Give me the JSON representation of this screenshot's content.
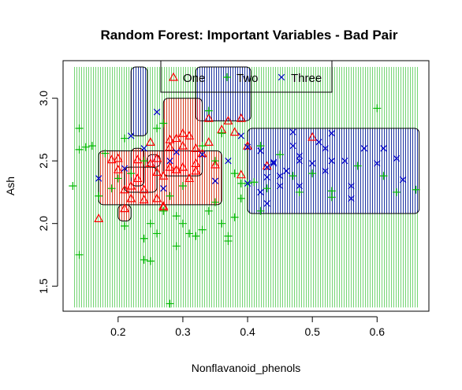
{
  "chart_data": {
    "type": "scatter",
    "title": "Random Forest: Important Variables - Bad Pair",
    "xlabel": "Nonflavanoid_phenols",
    "ylabel": "Ash",
    "xlim": [
      0.115,
      0.68
    ],
    "ylim": [
      1.3,
      3.3
    ],
    "xticks": [
      0.2,
      0.3,
      0.4,
      0.5,
      0.6
    ],
    "xtick_labels": [
      "0.2",
      "0.3",
      "0.4",
      "0.5",
      "0.6"
    ],
    "yticks": [
      1.5,
      2.0,
      2.5,
      3.0
    ],
    "ytick_labels": [
      "1.5",
      "2.0",
      "2.5",
      "3.0"
    ],
    "legend_placement": "top",
    "grid": false,
    "background_grid_classes": {
      "One": "#ff0000",
      "Two": "#00bb00",
      "Three": "#0000cc"
    },
    "regions": {
      "One": [
        [
          0.17,
          0.36,
          2.15,
          2.58
        ],
        [
          0.27,
          0.33,
          2.38,
          3.0
        ],
        [
          0.21,
          0.26,
          2.25,
          2.45
        ],
        [
          0.2,
          0.22,
          2.02,
          2.15
        ],
        [
          0.22,
          0.24,
          2.3,
          2.6
        ]
      ],
      "Three": [
        [
          0.22,
          0.245,
          2.7,
          3.25
        ],
        [
          0.32,
          0.405,
          2.82,
          3.25
        ],
        [
          0.4,
          0.665,
          2.08,
          2.76
        ],
        [
          0.245,
          0.265,
          2.45,
          2.55
        ]
      ]
    },
    "series": [
      {
        "name": "One",
        "marker": "triangle",
        "color": "#ff0000",
        "points": [
          [
            0.17,
            2.04
          ],
          [
            0.19,
            2.51
          ],
          [
            0.2,
            2.52
          ],
          [
            0.2,
            2.43
          ],
          [
            0.21,
            2.27
          ],
          [
            0.21,
            2.12
          ],
          [
            0.22,
            2.3
          ],
          [
            0.22,
            2.2
          ],
          [
            0.23,
            2.51
          ],
          [
            0.23,
            2.36
          ],
          [
            0.24,
            2.27
          ],
          [
            0.24,
            2.19
          ],
          [
            0.25,
            2.65
          ],
          [
            0.25,
            2.48
          ],
          [
            0.26,
            2.41
          ],
          [
            0.26,
            2.52
          ],
          [
            0.27,
            2.13
          ],
          [
            0.27,
            2.38
          ],
          [
            0.27,
            2.14
          ],
          [
            0.28,
            2.61
          ],
          [
            0.28,
            2.45
          ],
          [
            0.28,
            2.67
          ],
          [
            0.29,
            2.43
          ],
          [
            0.29,
            2.68
          ],
          [
            0.3,
            2.72
          ],
          [
            0.3,
            2.62
          ],
          [
            0.3,
            2.45
          ],
          [
            0.31,
            2.7
          ],
          [
            0.31,
            2.36
          ],
          [
            0.32,
            2.48
          ],
          [
            0.32,
            2.6
          ],
          [
            0.33,
            2.56
          ],
          [
            0.34,
            2.84
          ],
          [
            0.34,
            2.65
          ],
          [
            0.35,
            2.47
          ],
          [
            0.26,
            2.2
          ],
          [
            0.36,
            2.75
          ],
          [
            0.37,
            2.82
          ],
          [
            0.38,
            2.73
          ],
          [
            0.39,
            2.84
          ],
          [
            0.4,
            2.62
          ],
          [
            0.5,
            2.69
          ],
          [
            0.43,
            2.46
          ],
          [
            0.32,
            2.42
          ],
          [
            0.39,
            2.39
          ]
        ]
      },
      {
        "name": "Two",
        "marker": "plus",
        "color": "#00bb00",
        "points": [
          [
            0.13,
            2.3
          ],
          [
            0.14,
            1.75
          ],
          [
            0.14,
            2.59
          ],
          [
            0.15,
            2.61
          ],
          [
            0.17,
            2.22
          ],
          [
            0.19,
            2.28
          ],
          [
            0.2,
            2.36
          ],
          [
            0.21,
            2.68
          ],
          [
            0.22,
            2.4
          ],
          [
            0.24,
            1.71
          ],
          [
            0.24,
            1.88
          ],
          [
            0.25,
            1.7
          ],
          [
            0.25,
            2.0
          ],
          [
            0.26,
            1.92
          ],
          [
            0.27,
            2.1
          ],
          [
            0.28,
            1.36
          ],
          [
            0.28,
            2.22
          ],
          [
            0.29,
            1.82
          ],
          [
            0.3,
            2.0
          ],
          [
            0.3,
            2.3
          ],
          [
            0.31,
            1.92
          ],
          [
            0.32,
            1.9
          ],
          [
            0.33,
            1.95
          ],
          [
            0.34,
            2.1
          ],
          [
            0.35,
            2.17
          ],
          [
            0.36,
            2.0
          ],
          [
            0.37,
            1.9
          ],
          [
            0.37,
            1.86
          ],
          [
            0.38,
            2.05
          ],
          [
            0.39,
            2.2
          ],
          [
            0.4,
            2.32
          ],
          [
            0.42,
            2.1
          ],
          [
            0.43,
            2.28
          ],
          [
            0.45,
            2.55
          ],
          [
            0.47,
            2.38
          ],
          [
            0.48,
            2.25
          ],
          [
            0.5,
            2.4
          ],
          [
            0.53,
            2.21
          ],
          [
            0.53,
            2.26
          ],
          [
            0.57,
            2.46
          ],
          [
            0.6,
            2.92
          ],
          [
            0.61,
            2.38
          ],
          [
            0.63,
            2.25
          ],
          [
            0.66,
            2.27
          ],
          [
            0.14,
            2.76
          ],
          [
            0.16,
            2.62
          ],
          [
            0.18,
            2.56
          ],
          [
            0.24,
            2.5
          ],
          [
            0.26,
            2.76
          ],
          [
            0.27,
            2.8
          ],
          [
            0.33,
            2.62
          ],
          [
            0.34,
            2.9
          ],
          [
            0.35,
            2.5
          ],
          [
            0.36,
            2.72
          ],
          [
            0.38,
            2.4
          ],
          [
            0.39,
            2.32
          ],
          [
            0.41,
            2.33
          ],
          [
            0.42,
            2.62
          ],
          [
            0.21,
            1.98
          ],
          [
            0.29,
            2.06
          ]
        ]
      },
      {
        "name": "Three",
        "marker": "cross",
        "color": "#0000cc",
        "points": [
          [
            0.17,
            2.36
          ],
          [
            0.22,
            2.7
          ],
          [
            0.24,
            2.6
          ],
          [
            0.26,
            2.89
          ],
          [
            0.29,
            2.57
          ],
          [
            0.4,
            2.61
          ],
          [
            0.4,
            2.32
          ],
          [
            0.42,
            2.58
          ],
          [
            0.42,
            2.25
          ],
          [
            0.43,
            2.16
          ],
          [
            0.43,
            2.45
          ],
          [
            0.43,
            2.37
          ],
          [
            0.44,
            2.48
          ],
          [
            0.44,
            2.49
          ],
          [
            0.45,
            2.38
          ],
          [
            0.45,
            2.3
          ],
          [
            0.46,
            2.42
          ],
          [
            0.47,
            2.62
          ],
          [
            0.47,
            2.73
          ],
          [
            0.48,
            2.5
          ],
          [
            0.48,
            2.54
          ],
          [
            0.48,
            2.3
          ],
          [
            0.5,
            2.48
          ],
          [
            0.51,
            2.65
          ],
          [
            0.52,
            2.6
          ],
          [
            0.52,
            2.42
          ],
          [
            0.53,
            2.72
          ],
          [
            0.53,
            2.5
          ],
          [
            0.55,
            2.5
          ],
          [
            0.56,
            2.3
          ],
          [
            0.56,
            2.2
          ],
          [
            0.58,
            2.6
          ],
          [
            0.6,
            2.48
          ],
          [
            0.61,
            2.6
          ],
          [
            0.63,
            2.52
          ],
          [
            0.64,
            2.35
          ],
          [
            0.39,
            2.7
          ],
          [
            0.37,
            2.5
          ],
          [
            0.33,
            2.55
          ],
          [
            0.35,
            2.34
          ],
          [
            0.21,
            2.44
          ],
          [
            0.27,
            2.28
          ],
          [
            0.28,
            2.5
          ]
        ]
      }
    ]
  }
}
